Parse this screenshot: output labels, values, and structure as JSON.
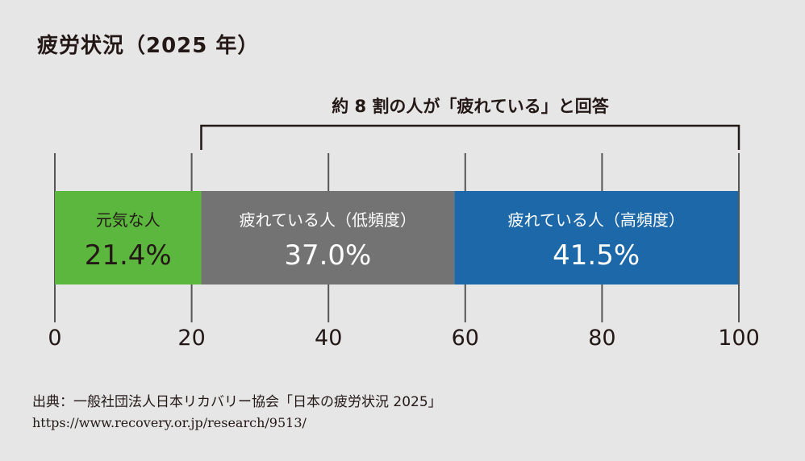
{
  "title": "疲労状況（2025 年）",
  "annotation": "約 8 割の人が「疲れている」と回答",
  "chart_data": {
    "type": "bar",
    "orientation": "horizontal-stacked",
    "xlim": [
      0,
      100
    ],
    "x_ticks": [
      0,
      20,
      40,
      60,
      80,
      100
    ],
    "grid": true,
    "series": [
      {
        "name": "元気な人",
        "value": 21.4,
        "label": "21.4%",
        "color": "#5cb73f"
      },
      {
        "name": "疲れている人（低頻度）",
        "value": 37.0,
        "label": "37.0%",
        "color": "#737373"
      },
      {
        "name": "疲れている人（高頻度）",
        "value": 41.5,
        "label": "41.5%",
        "color": "#1c68a8"
      }
    ],
    "bracket_range": [
      21.4,
      100
    ]
  },
  "source": {
    "citation": "出典：一般社団法人日本リカバリー協会「日本の疲労状況 2025」",
    "url": "https://www.recovery.or.jp/research/9513/"
  }
}
